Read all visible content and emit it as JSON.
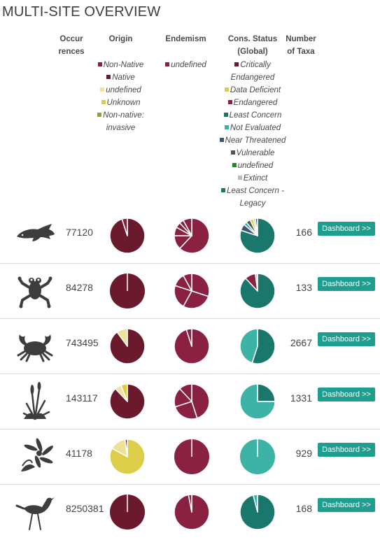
{
  "title": "MULTI-SITE OVERVIEW",
  "headers": {
    "occurrences": [
      "Occur",
      "rences"
    ],
    "origin": "Origin",
    "endemism": "Endemism",
    "cons_status": [
      "Cons. Status",
      "(Global)"
    ],
    "taxa": [
      "Number",
      "of Taxa"
    ]
  },
  "legends": {
    "origin": [
      {
        "label": "Non-Native",
        "color": "#8b2140"
      },
      {
        "label": "Native",
        "color": "#6b1a2e"
      },
      {
        "label": "undefined",
        "color": "#ede29a"
      },
      {
        "label": "Unknown",
        "color": "#dcce49"
      },
      {
        "label": "Non-native: invasive",
        "color": "#9b9a45"
      }
    ],
    "endemism": [
      {
        "label": "undefined",
        "color": "#8b2140"
      }
    ],
    "cons_status": [
      {
        "label": "Critically Endangered",
        "color": "#6b1a2e"
      },
      {
        "label": "Data Deficient",
        "color": "#dcce49"
      },
      {
        "label": "Endangered",
        "color": "#8b2140"
      },
      {
        "label": "Least Concern",
        "color": "#19786b"
      },
      {
        "label": "Not Evaluated",
        "color": "#3db3a6"
      },
      {
        "label": "Near Threatened",
        "color": "#3d5670"
      },
      {
        "label": "Vulnerable",
        "color": "#555555"
      },
      {
        "label": "undefined",
        "color": "#1e8a2a"
      },
      {
        "label": "Extinct",
        "color": "#bbbbbb"
      },
      {
        "label": "Least Concern - Legacy",
        "color": "#19786b"
      }
    ]
  },
  "button_label": "Dashboard >>",
  "rows": [
    {
      "icon": "fish-icon",
      "occurrences": "77120",
      "taxa": "166",
      "origin": [
        {
          "v": 0.95,
          "c": "#6b1a2e"
        },
        {
          "v": 0.05,
          "c": "#8b2140"
        }
      ],
      "endemism": [
        {
          "v": 0.62,
          "c": "#8b2140"
        },
        {
          "v": 0.13,
          "c": "#8b2140"
        },
        {
          "v": 0.08,
          "c": "#8b2140"
        },
        {
          "v": 0.05,
          "c": "#8b2140"
        },
        {
          "v": 0.04,
          "c": "#8b2140"
        },
        {
          "v": 0.08,
          "c": "#8b2140"
        }
      ],
      "cons": [
        {
          "v": 0.8,
          "c": "#19786b"
        },
        {
          "v": 0.06,
          "c": "#3d5670"
        },
        {
          "v": 0.03,
          "c": "#3db3a6"
        },
        {
          "v": 0.04,
          "c": "#555555"
        },
        {
          "v": 0.03,
          "c": "#dcce49"
        },
        {
          "v": 0.02,
          "c": "#bbbbbb"
        },
        {
          "v": 0.02,
          "c": "#3d5670"
        }
      ]
    },
    {
      "icon": "frog-icon",
      "occurrences": "84278",
      "taxa": "133",
      "origin": [
        {
          "v": 1.0,
          "c": "#6b1a2e"
        }
      ],
      "endemism": [
        {
          "v": 0.3,
          "c": "#8b2140"
        },
        {
          "v": 0.28,
          "c": "#8b2140"
        },
        {
          "v": 0.22,
          "c": "#8b2140"
        },
        {
          "v": 0.12,
          "c": "#8b2140"
        },
        {
          "v": 0.08,
          "c": "#8b2140"
        }
      ],
      "cons": [
        {
          "v": 0.88,
          "c": "#19786b"
        },
        {
          "v": 0.1,
          "c": "#8b2140"
        },
        {
          "v": 0.02,
          "c": "#bbbbbb"
        }
      ]
    },
    {
      "icon": "crab-icon",
      "occurrences": "743495",
      "taxa": "2667",
      "origin": [
        {
          "v": 0.9,
          "c": "#6b1a2e"
        },
        {
          "v": 0.1,
          "c": "#ede29a"
        }
      ],
      "endemism": [
        {
          "v": 0.95,
          "c": "#8b2140"
        },
        {
          "v": 0.05,
          "c": "#8b2140"
        }
      ],
      "cons": [
        {
          "v": 0.55,
          "c": "#19786b"
        },
        {
          "v": 0.45,
          "c": "#3db3a6"
        }
      ]
    },
    {
      "icon": "reed-plant-icon",
      "occurrences": "143117",
      "taxa": "1331",
      "origin": [
        {
          "v": 0.88,
          "c": "#6b1a2e"
        },
        {
          "v": 0.06,
          "c": "#ede29a"
        },
        {
          "v": 0.06,
          "c": "#dcce49"
        }
      ],
      "endemism": [
        {
          "v": 0.45,
          "c": "#8b2140"
        },
        {
          "v": 0.25,
          "c": "#8b2140"
        },
        {
          "v": 0.18,
          "c": "#8b2140"
        },
        {
          "v": 0.12,
          "c": "#8b2140"
        }
      ],
      "cons": [
        {
          "v": 0.25,
          "c": "#19786b"
        },
        {
          "v": 0.75,
          "c": "#3db3a6"
        }
      ]
    },
    {
      "icon": "wildflower-icon",
      "occurrences": "41178",
      "taxa": "929",
      "origin": [
        {
          "v": 0.83,
          "c": "#dcce49"
        },
        {
          "v": 0.15,
          "c": "#ede29a"
        },
        {
          "v": 0.02,
          "c": "#6b1a2e"
        }
      ],
      "endemism": [
        {
          "v": 1.0,
          "c": "#8b2140"
        }
      ],
      "cons": [
        {
          "v": 1.0,
          "c": "#3db3a6"
        }
      ]
    },
    {
      "icon": "stilt-bird-icon",
      "occurrences": "8250381",
      "taxa": "168",
      "origin": [
        {
          "v": 1.0,
          "c": "#6b1a2e"
        }
      ],
      "endemism": [
        {
          "v": 0.97,
          "c": "#8b2140"
        },
        {
          "v": 0.03,
          "c": "#8b2140"
        }
      ],
      "cons": [
        {
          "v": 0.96,
          "c": "#19786b"
        },
        {
          "v": 0.04,
          "c": "#3db3a6"
        }
      ]
    }
  ]
}
